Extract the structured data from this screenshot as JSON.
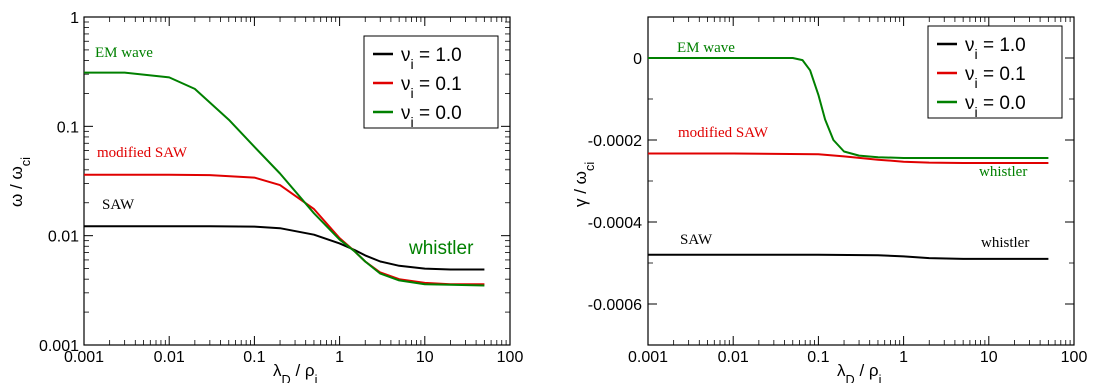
{
  "chart_data": [
    {
      "type": "line",
      "xlabel": "λD / ρi",
      "ylabel": "ω / ωci",
      "xscale": "log",
      "yscale": "log",
      "xlim": [
        0.001,
        100
      ],
      "ylim": [
        0.001,
        1
      ],
      "x_ticks": [
        "0.001",
        "0.01",
        "0.1",
        "1",
        "10",
        "100"
      ],
      "y_ticks": [
        "0.001",
        "0.01",
        "0.1",
        "1"
      ],
      "legend_placement": "top-right",
      "legend": [
        {
          "label": "νi = 1.0",
          "color": "#000000"
        },
        {
          "label": "νi = 0.1",
          "color": "#e00000"
        },
        {
          "label": "νi = 0.0",
          "color": "#008000"
        }
      ],
      "annotations": [
        {
          "text": "EM wave",
          "color": "#008000"
        },
        {
          "text": "modified SAW",
          "color": "#e00000"
        },
        {
          "text": "SAW",
          "color": "#000000"
        },
        {
          "text": "whistler",
          "color": "#008000"
        }
      ],
      "series": [
        {
          "name": "νi = 1.0",
          "color": "#000000",
          "x": [
            0.001,
            0.01,
            0.03,
            0.1,
            0.2,
            0.5,
            1,
            1.5,
            2,
            3,
            5,
            10,
            20,
            50
          ],
          "y": [
            0.0122,
            0.0122,
            0.0122,
            0.0121,
            0.0117,
            0.0102,
            0.0085,
            0.0074,
            0.0066,
            0.0058,
            0.0053,
            0.005,
            0.0049,
            0.0049
          ]
        },
        {
          "name": "νi = 0.1",
          "color": "#e00000",
          "x": [
            0.001,
            0.01,
            0.03,
            0.1,
            0.2,
            0.5,
            1,
            1.5,
            2,
            3,
            5,
            10,
            20,
            50
          ],
          "y": [
            0.036,
            0.036,
            0.0358,
            0.034,
            0.029,
            0.0175,
            0.0095,
            0.0072,
            0.0058,
            0.0046,
            0.004,
            0.0037,
            0.0036,
            0.0036
          ]
        },
        {
          "name": "νi = 0.0",
          "color": "#008000",
          "x": [
            0.001,
            0.003,
            0.01,
            0.02,
            0.05,
            0.1,
            0.2,
            0.5,
            1,
            1.5,
            2,
            3,
            5,
            10,
            20,
            50
          ],
          "y": [
            0.31,
            0.31,
            0.28,
            0.22,
            0.115,
            0.065,
            0.037,
            0.016,
            0.0092,
            0.0072,
            0.0058,
            0.0045,
            0.0039,
            0.0036,
            0.00355,
            0.0035
          ]
        }
      ]
    },
    {
      "type": "line",
      "xlabel": "λD / ρi",
      "ylabel": "γ / ωci",
      "xscale": "log",
      "yscale": "linear",
      "xlim": [
        0.001,
        100
      ],
      "ylim": [
        -0.0007,
        0.0001
      ],
      "x_ticks": [
        "0.001",
        "0.01",
        "0.1",
        "1",
        "10",
        "100"
      ],
      "y_ticks": [
        "0",
        "-0.0002",
        "-0.0004",
        "-0.0006"
      ],
      "legend_placement": "top-right",
      "legend": [
        {
          "label": "νi = 1.0",
          "color": "#000000"
        },
        {
          "label": "νi = 0.1",
          "color": "#e00000"
        },
        {
          "label": "νi = 0.0",
          "color": "#008000"
        }
      ],
      "annotations": [
        {
          "text": "EM wave",
          "color": "#008000"
        },
        {
          "text": "modified SAW",
          "color": "#e00000"
        },
        {
          "text": "whistler",
          "color": "#008000"
        },
        {
          "text": "SAW",
          "color": "#000000"
        },
        {
          "text": "whistler",
          "color": "#000000"
        }
      ],
      "series": [
        {
          "name": "νi = 1.0",
          "color": "#000000",
          "x": [
            0.001,
            0.01,
            0.1,
            0.5,
            1,
            2,
            5,
            10,
            50
          ],
          "y": [
            -0.00048,
            -0.00048,
            -0.00048,
            -0.000481,
            -0.000484,
            -0.000488,
            -0.00049,
            -0.00049,
            -0.00049
          ]
        },
        {
          "name": "νi = 0.1",
          "color": "#e00000",
          "x": [
            0.001,
            0.01,
            0.1,
            0.2,
            0.5,
            1,
            2,
            5,
            10,
            50
          ],
          "y": [
            -0.000233,
            -0.000233,
            -0.000235,
            -0.00024,
            -0.000248,
            -0.000253,
            -0.000255,
            -0.000256,
            -0.000256,
            -0.000256
          ]
        },
        {
          "name": "νi = 0.0",
          "color": "#008000",
          "x": [
            0.001,
            0.01,
            0.05,
            0.065,
            0.08,
            0.1,
            0.12,
            0.15,
            0.2,
            0.3,
            0.5,
            1,
            2,
            5,
            10,
            50
          ],
          "y": [
            0,
            0,
            0,
            -5e-06,
            -3e-05,
            -9e-05,
            -0.00015,
            -0.0002,
            -0.000228,
            -0.000238,
            -0.000242,
            -0.000244,
            -0.000244,
            -0.000244,
            -0.000244,
            -0.000244
          ]
        }
      ]
    }
  ]
}
